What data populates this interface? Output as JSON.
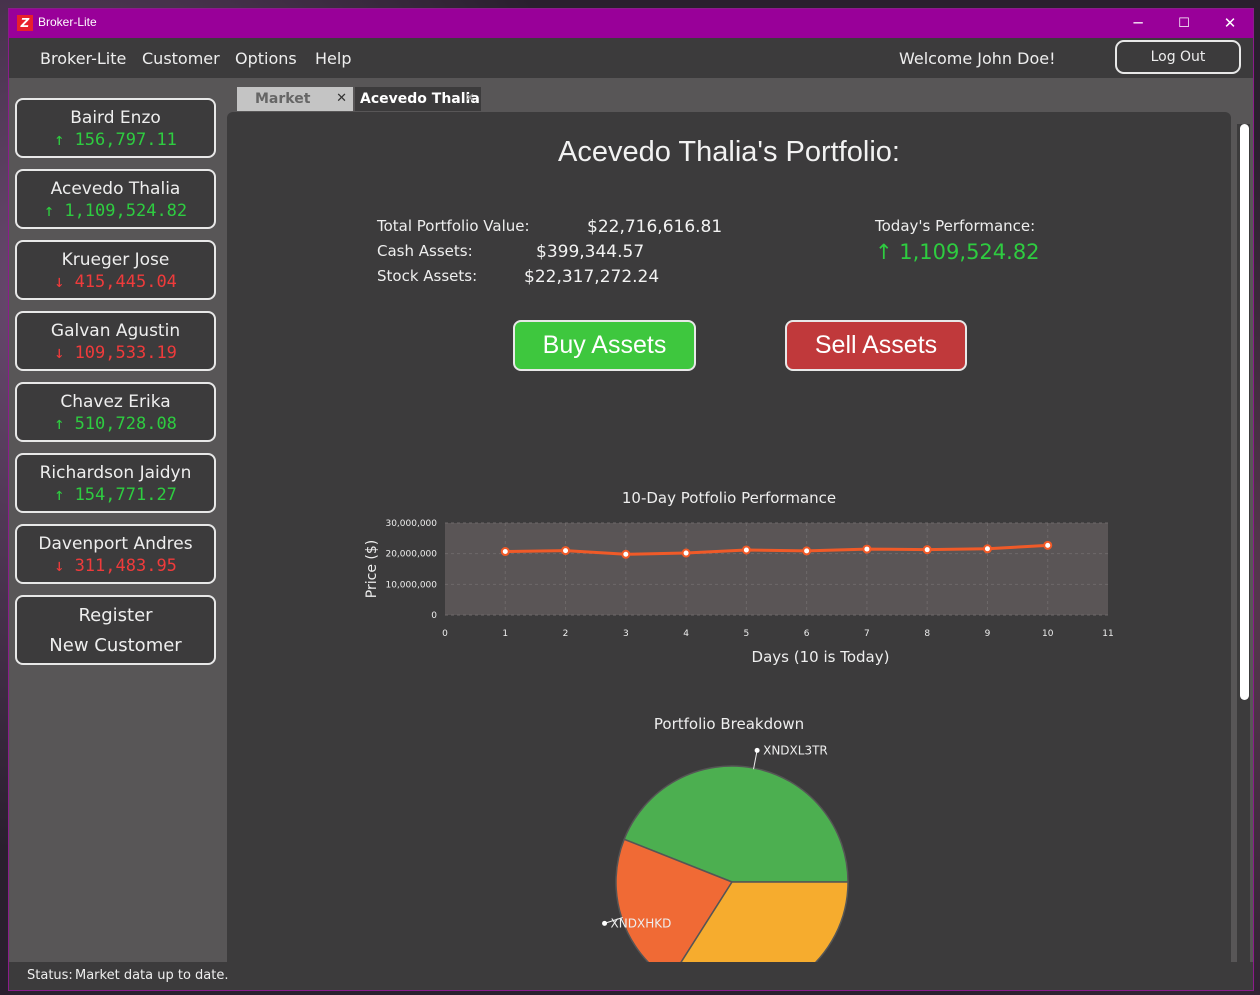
{
  "window": {
    "title": "Broker-Lite",
    "app_icon": "Z",
    "minimize": "─",
    "maximize": "☐",
    "close": "✕"
  },
  "menubar": {
    "items": [
      "Broker-Lite",
      "Customer",
      "Options",
      "Help"
    ],
    "welcome": "Welcome John Doe!",
    "logout_label": "Log Out"
  },
  "customers": [
    {
      "name": "Baird Enzo",
      "arrow": "↑",
      "value": "156,797.11",
      "trend": "up"
    },
    {
      "name": "Acevedo Thalia",
      "arrow": "↑",
      "value": "1,109,524.82",
      "trend": "up"
    },
    {
      "name": "Krueger Jose",
      "arrow": "↓",
      "value": "415,445.04",
      "trend": "down"
    },
    {
      "name": "Galvan Agustin",
      "arrow": "↓",
      "value": "109,533.19",
      "trend": "down"
    },
    {
      "name": "Chavez Erika",
      "arrow": "↑",
      "value": "510,728.08",
      "trend": "up"
    },
    {
      "name": "Richardson Jaidyn",
      "arrow": "↑",
      "value": "154,771.27",
      "trend": "up"
    },
    {
      "name": "Davenport Andres",
      "arrow": "↓",
      "value": "311,483.95",
      "trend": "down"
    }
  ],
  "register": {
    "line1": "Register",
    "line2": "New Customer"
  },
  "tabs": [
    {
      "label": "Market",
      "close": "✕"
    },
    {
      "label": "Acevedo Thalia",
      "close": "✕"
    }
  ],
  "portfolio": {
    "title": "Acevedo Thalia's Portfolio:",
    "total_label": "Total Portfolio Value:",
    "total_value": "$22,716,616.81",
    "cash_label": "Cash Assets:",
    "cash_value": "$399,344.57",
    "stock_label": "Stock Assets:",
    "stock_value": "$22,317,272.24",
    "perf_label": "Today's Performance:",
    "perf_value": "↑ 1,109,524.82"
  },
  "actions": {
    "buy": "Buy Assets",
    "sell": "Sell Assets"
  },
  "status": {
    "label": "Status:",
    "text": "Market data up to date."
  },
  "colors": {
    "up": "#2ecc40",
    "down": "#ef3b3b",
    "titlebar": "#990099",
    "line": "#f05a28"
  },
  "chart_data": [
    {
      "type": "line",
      "title": "10-Day Potfolio Performance",
      "xlabel": "Days (10 is Today)",
      "ylabel": "Price ($)",
      "x": [
        1,
        2,
        3,
        4,
        5,
        6,
        7,
        8,
        9,
        10
      ],
      "series": [
        {
          "values": [
            20700000,
            21000000,
            19800000,
            20200000,
            21200000,
            20900000,
            21500000,
            21300000,
            21600000,
            22716616.81
          ]
        }
      ],
      "xlim": [
        0,
        11
      ],
      "ylim": [
        0,
        30000000
      ],
      "x_ticks": [
        "0",
        "1",
        "2",
        "3",
        "4",
        "5",
        "6",
        "7",
        "8",
        "9",
        "10",
        "11"
      ],
      "y_ticks": [
        "0",
        "10,000,000",
        "20,000,000",
        "30,000,000"
      ],
      "grid": true
    },
    {
      "type": "pie",
      "title": "Portfolio Breakdown",
      "labels": [
        "XNDXL3TR",
        "XNDXHKD",
        ""
      ],
      "values": [
        44,
        22,
        34
      ],
      "colors": [
        "#4caf50",
        "#f06a35",
        "#f6ac2e"
      ]
    }
  ]
}
